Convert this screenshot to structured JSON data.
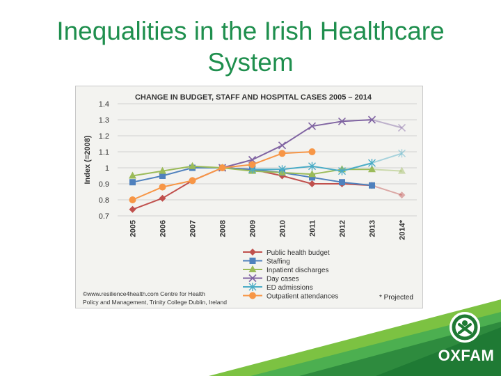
{
  "slide": {
    "title_line1": "Inequalities in the Irish Healthcare",
    "title_line2": "System"
  },
  "brand": {
    "logo_text": "OXFAM",
    "green": "#1f8f4e",
    "light_green": "#5cb85c"
  },
  "chart_data": {
    "type": "line",
    "title": "CHANGE IN BUDGET, STAFF AND HOSPITAL CASES 2005 – 2014",
    "ylabel": "Index (=2008)",
    "ylim": [
      0.7,
      1.4
    ],
    "yticks": [
      "0.7",
      "0.8",
      "0.9",
      "1",
      "1.1",
      "1.2",
      "1.3",
      "1.4"
    ],
    "categories": [
      "2005",
      "2006",
      "2007",
      "2008",
      "2009",
      "2010",
      "2011",
      "2012",
      "2013",
      "2014*"
    ],
    "grid": true,
    "legend_position": "bottom",
    "series": [
      {
        "name": "Public health budget",
        "color": "#c0504d",
        "marker": "diamond",
        "values": [
          0.74,
          0.81,
          0.92,
          1.0,
          0.99,
          0.95,
          0.9,
          0.9,
          0.89,
          0.83
        ],
        "projected_from": 8
      },
      {
        "name": "Staffing",
        "color": "#4f81bd",
        "marker": "square",
        "values": [
          0.91,
          0.95,
          1.0,
          1.0,
          0.99,
          0.97,
          0.94,
          0.91,
          0.89,
          null
        ],
        "projected_from": null
      },
      {
        "name": "Inpatient discharges",
        "color": "#9bbb59",
        "marker": "triangle",
        "values": [
          0.95,
          0.98,
          1.01,
          1.0,
          0.98,
          0.97,
          0.96,
          0.99,
          0.99,
          0.98
        ],
        "projected_from": 8
      },
      {
        "name": "Day cases",
        "color": "#8064a2",
        "marker": "x",
        "values": [
          null,
          null,
          null,
          1.0,
          1.05,
          1.14,
          1.26,
          1.29,
          1.3,
          1.25
        ],
        "projected_from": 8
      },
      {
        "name": "ED admissions",
        "color": "#4bacc6",
        "marker": "star",
        "values": [
          null,
          null,
          null,
          null,
          0.99,
          0.99,
          1.01,
          0.98,
          1.03,
          1.09
        ],
        "projected_from": 8
      },
      {
        "name": "Outpatient attendances",
        "color": "#f79646",
        "marker": "circle",
        "values": [
          0.8,
          0.88,
          0.92,
          1.0,
          1.02,
          1.09,
          1.1,
          null,
          null,
          null
        ],
        "projected_from": null
      }
    ],
    "source_line1": "©www.resilience4health.com  Centre for Health",
    "source_line2": "Policy and Management, Trinity College Dublin, Ireland",
    "projected_note": "* Projected"
  }
}
